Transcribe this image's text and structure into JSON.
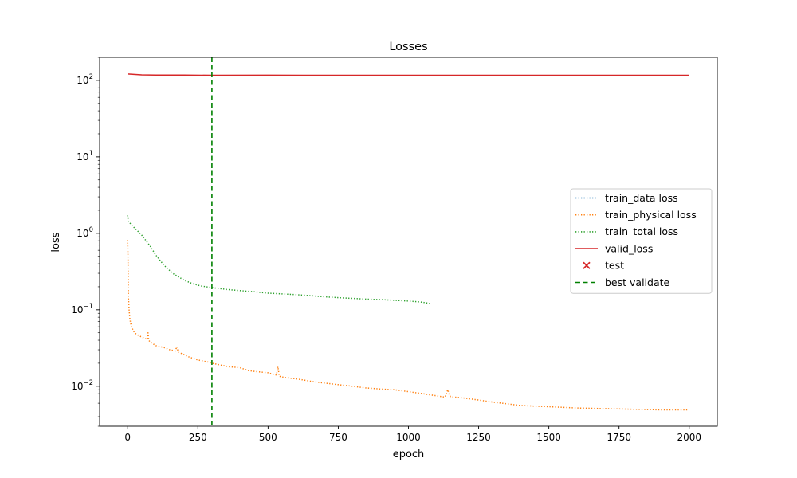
{
  "chart_data": {
    "type": "line",
    "title": "Losses",
    "xlabel": "epoch",
    "ylabel": "loss",
    "xlim": [
      -100,
      2100
    ],
    "ylim": [
      0.003,
      200
    ],
    "yscale": "log",
    "grid": false,
    "legend_placement": "center-right",
    "x_ticks": [
      0,
      250,
      500,
      750,
      1000,
      1250,
      1500,
      1750,
      2000
    ],
    "x_tick_labels": [
      "0",
      "250",
      "500",
      "750",
      "1000",
      "1250",
      "1500",
      "1750",
      "2000"
    ],
    "y_ticks": [
      0.01,
      0.1,
      1,
      10,
      100
    ],
    "y_tick_labels": [
      {
        "base": "10",
        "exp": "−2"
      },
      {
        "base": "10",
        "exp": "−1"
      },
      {
        "base": "10",
        "exp": "0"
      },
      {
        "base": "10",
        "exp": "1"
      },
      {
        "base": "10",
        "exp": "2"
      }
    ],
    "series": [
      {
        "name": "train_data loss",
        "style": "dotted",
        "color": "#1f77b4",
        "x": [],
        "y": []
      },
      {
        "name": "train_physical loss",
        "style": "dotted",
        "color": "#ff7f0e",
        "x": [
          0,
          1,
          2,
          3,
          5,
          8,
          12,
          20,
          30,
          50,
          70,
          72,
          75,
          80,
          100,
          130,
          150,
          170,
          175,
          180,
          200,
          220,
          250,
          280,
          300,
          330,
          360,
          400,
          430,
          460,
          500,
          530,
          535,
          540,
          560,
          600,
          630,
          660,
          700,
          750,
          800,
          850,
          900,
          950,
          1000,
          1050,
          1100,
          1130,
          1140,
          1145,
          1150,
          1200,
          1250,
          1300,
          1350,
          1400,
          1500,
          1600,
          1700,
          1800,
          1900,
          2000
        ],
        "y": [
          0.82,
          0.5,
          0.22,
          0.14,
          0.1,
          0.075,
          0.063,
          0.053,
          0.048,
          0.044,
          0.041,
          0.052,
          0.04,
          0.038,
          0.034,
          0.032,
          0.03,
          0.029,
          0.033,
          0.028,
          0.026,
          0.024,
          0.022,
          0.021,
          0.02,
          0.019,
          0.018,
          0.0175,
          0.016,
          0.0155,
          0.015,
          0.014,
          0.018,
          0.0135,
          0.013,
          0.0125,
          0.012,
          0.0115,
          0.011,
          0.0105,
          0.01,
          0.0095,
          0.0092,
          0.009,
          0.0085,
          0.008,
          0.0075,
          0.0072,
          0.009,
          0.0078,
          0.0073,
          0.007,
          0.0066,
          0.0062,
          0.0059,
          0.0056,
          0.0054,
          0.0052,
          0.0051,
          0.005,
          0.0049,
          0.0049
        ]
      },
      {
        "name": "train_total loss",
        "style": "dotted",
        "color": "#2ca02c",
        "x": [
          0,
          2,
          5,
          20,
          50,
          80,
          100,
          130,
          160,
          200,
          230,
          260,
          300,
          350,
          400,
          450,
          500,
          530,
          600,
          650,
          700,
          750,
          800,
          850,
          900,
          950,
          1000,
          1040,
          1060,
          1080
        ],
        "y": [
          1.72,
          1.45,
          1.4,
          1.22,
          0.95,
          0.68,
          0.52,
          0.38,
          0.3,
          0.245,
          0.22,
          0.205,
          0.195,
          0.185,
          0.178,
          0.172,
          0.165,
          0.163,
          0.158,
          0.153,
          0.148,
          0.144,
          0.141,
          0.138,
          0.136,
          0.133,
          0.13,
          0.127,
          0.124,
          0.12
        ]
      },
      {
        "name": "valid_loss",
        "style": "solid",
        "color": "#d62728",
        "x": [
          0,
          50,
          100,
          200,
          300,
          500,
          750,
          1000,
          1250,
          1500,
          1750,
          2000
        ],
        "y": [
          121,
          118,
          117,
          117,
          116.5,
          116.8,
          116.6,
          116.7,
          116.6,
          116.6,
          116.6,
          116.6
        ]
      }
    ],
    "test_point": {
      "name": "test",
      "marker": "x",
      "color": "#d62728"
    },
    "best_validate": {
      "name": "best validate",
      "x": 300,
      "style": "dashed",
      "color": "#008000"
    }
  }
}
